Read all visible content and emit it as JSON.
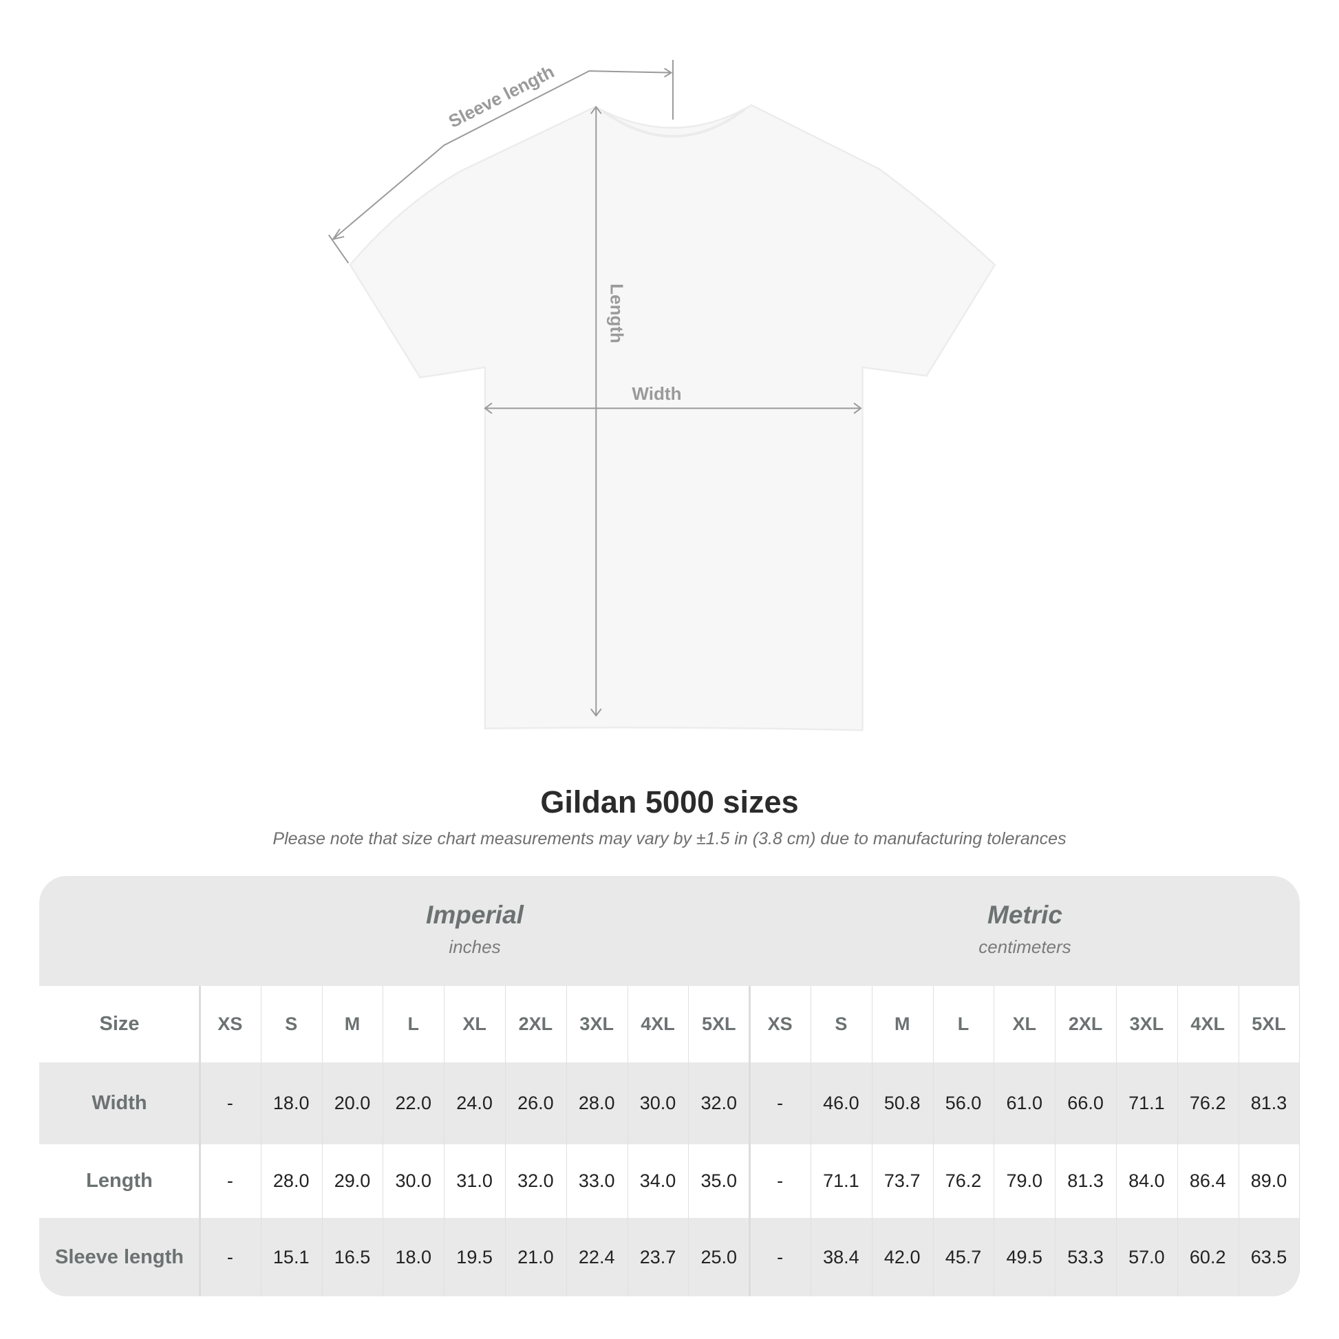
{
  "diagram": {
    "labels": {
      "sleeve": "Sleeve length",
      "length": "Length",
      "width": "Width"
    },
    "colors": {
      "shirt": "#f7f7f7",
      "lines": "#9a9a9a"
    }
  },
  "title": "Gildan 5000 sizes",
  "subtitle": "Please note that size chart measurements may vary by ±1.5 in (3.8 cm) due to manufacturing tolerances",
  "table": {
    "imperial": {
      "name": "Imperial",
      "unit": "inches"
    },
    "metric": {
      "name": "Metric",
      "unit": "centimeters"
    },
    "size_label": "Size",
    "sizes": [
      "XS",
      "S",
      "M",
      "L",
      "XL",
      "2XL",
      "3XL",
      "4XL",
      "5XL"
    ],
    "rows": [
      {
        "label": "Width",
        "imperial": [
          "-",
          "18.0",
          "20.0",
          "22.0",
          "24.0",
          "26.0",
          "28.0",
          "30.0",
          "32.0"
        ],
        "metric": [
          "-",
          "46.0",
          "50.8",
          "56.0",
          "61.0",
          "66.0",
          "71.1",
          "76.2",
          "81.3"
        ]
      },
      {
        "label": "Length",
        "imperial": [
          "-",
          "28.0",
          "29.0",
          "30.0",
          "31.0",
          "32.0",
          "33.0",
          "34.0",
          "35.0"
        ],
        "metric": [
          "-",
          "71.1",
          "73.7",
          "76.2",
          "79.0",
          "81.3",
          "84.0",
          "86.4",
          "89.0"
        ]
      },
      {
        "label": "Sleeve length",
        "imperial": [
          "-",
          "15.1",
          "16.5",
          "18.0",
          "19.5",
          "21.0",
          "22.4",
          "23.7",
          "25.0"
        ],
        "metric": [
          "-",
          "38.4",
          "42.0",
          "45.7",
          "49.5",
          "53.3",
          "57.0",
          "60.2",
          "63.5"
        ]
      }
    ],
    "colors": {
      "band": "#e9e9e9",
      "label": "#6c7272",
      "value": "#222222"
    }
  }
}
